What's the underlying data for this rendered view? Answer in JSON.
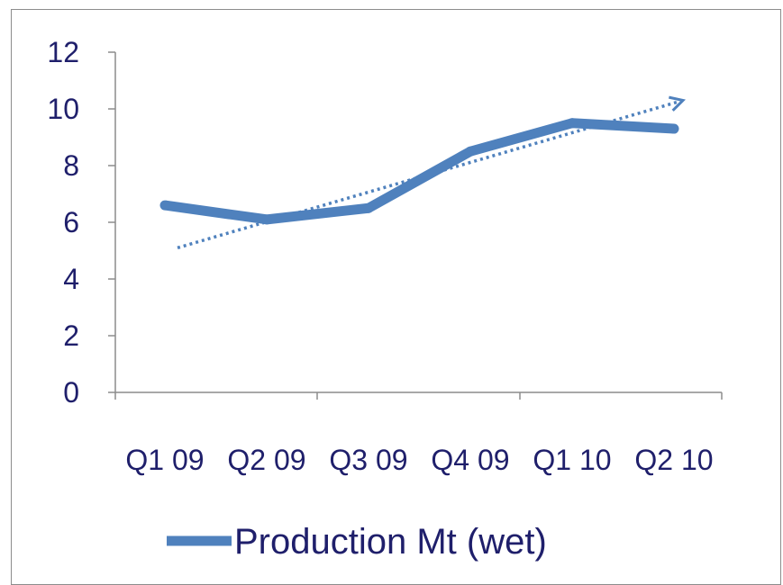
{
  "chart_data": {
    "type": "line",
    "categories": [
      "Q1 09",
      "Q2 09",
      "Q3 09",
      "Q4 09",
      "Q1 10",
      "Q2 10"
    ],
    "series": [
      {
        "name": "Production Mt (wet)",
        "values": [
          6.6,
          6.1,
          6.5,
          8.5,
          9.5,
          9.3
        ],
        "color": "#4f81bd"
      }
    ],
    "trendline": {
      "style": "dotted",
      "color": "#4f81bd",
      "start": 5.1,
      "end": 10.3
    },
    "ylim": [
      0,
      12
    ],
    "yticks": [
      "0",
      "2",
      "4",
      "6",
      "8",
      "10",
      "12"
    ],
    "grid": false,
    "legend": {
      "position": "bottom",
      "label": "Production Mt (wet)"
    }
  }
}
